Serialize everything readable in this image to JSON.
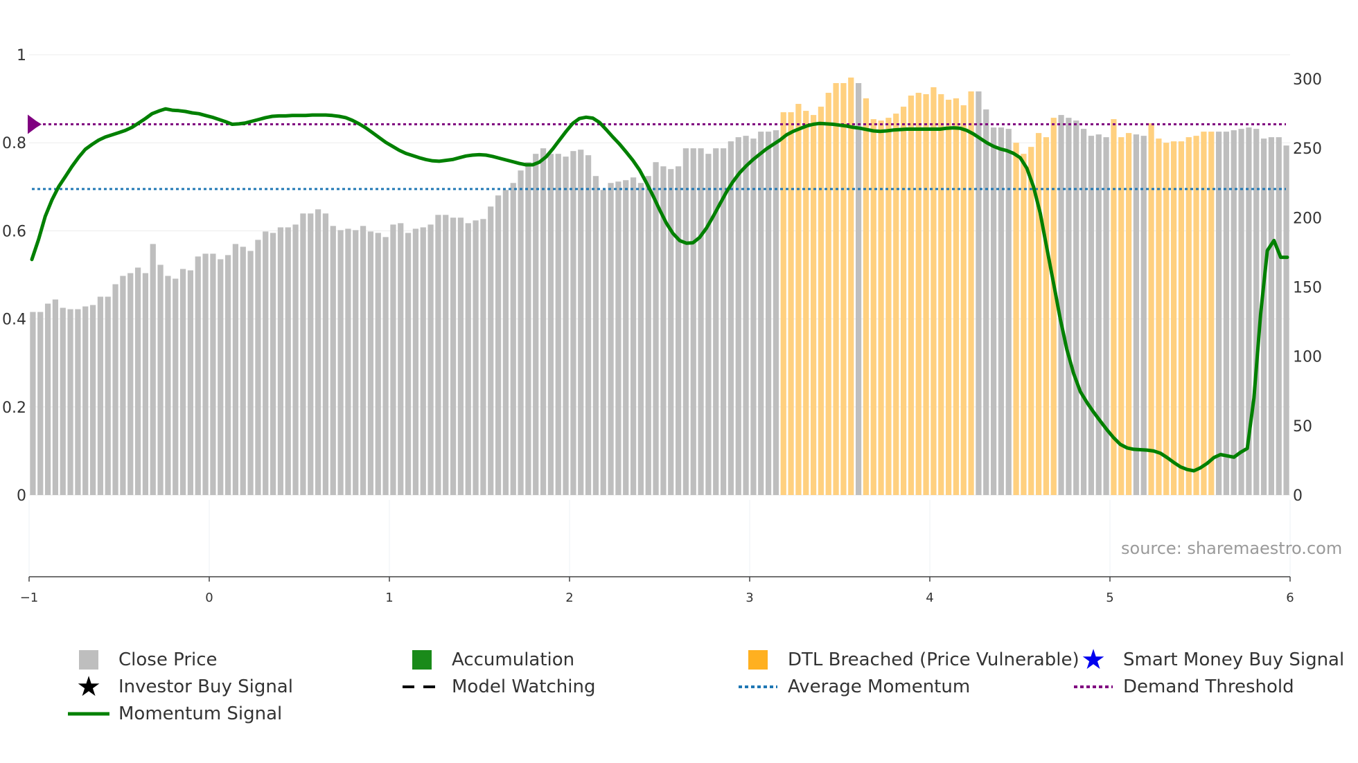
{
  "colors": {
    "price_bar": "#bebebe",
    "dtl_bar": "#ffd07f",
    "momentum": "#008000",
    "avg_momentum": "#1f77b4",
    "demand_threshold": "#800080",
    "threshold_marker": "#800080",
    "axis": "#444444",
    "grid": "#ececec"
  },
  "legend": {
    "close_price": "Close Price",
    "accumulation": "Accumulation",
    "dtl_breached": "DTL Breached (Price Vulnerable)",
    "smart_money": "Smart Money Buy Signal",
    "investor_buy": "Investor Buy Signal",
    "model_watching": "Model Watching",
    "average_momentum": "Average Momentum",
    "demand_threshold": "Demand Threshold",
    "momentum_signal": "Momentum Signal"
  },
  "source": "source: sharemaestro.com",
  "chart_data": {
    "type": "bar",
    "left_axis": {
      "range": [
        0,
        1
      ],
      "ticks": [
        "0",
        "0.2",
        "0.4",
        "0.6",
        "0.8",
        "1"
      ]
    },
    "right_axis": {
      "range": [
        0,
        300
      ],
      "ticks": [
        "0",
        "50",
        "100",
        "150",
        "200",
        "250",
        "300"
      ]
    },
    "x_axis": {
      "range": [
        -1,
        6
      ],
      "ticks": [
        "−1",
        "0",
        "1",
        "2",
        "3",
        "4",
        "5",
        "6"
      ]
    },
    "average_momentum": 0.695,
    "demand_threshold": 0.842,
    "close_price": [
      132,
      132,
      138,
      141,
      135,
      134,
      134,
      136,
      137,
      143,
      143,
      152,
      158,
      160,
      164,
      160,
      181,
      166,
      158,
      156,
      163,
      162,
      172,
      174,
      174,
      170,
      173,
      181,
      179,
      176,
      184,
      190,
      189,
      193,
      193,
      195,
      203,
      203,
      206,
      203,
      194,
      191,
      192,
      191,
      194,
      190,
      189,
      186,
      195,
      196,
      189,
      192,
      193,
      195,
      202,
      202,
      200,
      200,
      196,
      198,
      199,
      208,
      216,
      220,
      225,
      234,
      240,
      246,
      250,
      246,
      246,
      244,
      248,
      249,
      245,
      230,
      220,
      225,
      226,
      227,
      229,
      225,
      230,
      240,
      237,
      235,
      237,
      250,
      250,
      250,
      246,
      250,
      250,
      255,
      258,
      259,
      257,
      262,
      262,
      263,
      276,
      276,
      282,
      277,
      274,
      280,
      290,
      297,
      297,
      301,
      297,
      286,
      271,
      270,
      272,
      275,
      280,
      288,
      290,
      289,
      294,
      289,
      285,
      286,
      281,
      291,
      291,
      278,
      265,
      265,
      264,
      254,
      246,
      251,
      261,
      258,
      272,
      274,
      272,
      270,
      264,
      259,
      260,
      258,
      271,
      258,
      261,
      260,
      259,
      268,
      257,
      254,
      255,
      255,
      258,
      259,
      262,
      262,
      262,
      262,
      263,
      264,
      265,
      264,
      257,
      258,
      258,
      252
    ],
    "dtl_breached_ranges": [
      [
        100,
        109
      ],
      [
        111,
        125
      ],
      [
        131,
        136
      ],
      [
        144,
        146
      ],
      [
        149,
        157
      ]
    ],
    "momentum": [
      0.535,
      0.58,
      0.633,
      0.67,
      0.7,
      0.723,
      0.746,
      0.767,
      0.785,
      0.796,
      0.806,
      0.813,
      0.818,
      0.823,
      0.828,
      0.835,
      0.845,
      0.855,
      0.866,
      0.872,
      0.877,
      0.874,
      0.873,
      0.871,
      0.868,
      0.866,
      0.862,
      0.858,
      0.853,
      0.848,
      0.842,
      0.843,
      0.845,
      0.849,
      0.853,
      0.857,
      0.86,
      0.861,
      0.861,
      0.862,
      0.862,
      0.862,
      0.863,
      0.863,
      0.863,
      0.862,
      0.86,
      0.857,
      0.851,
      0.843,
      0.834,
      0.823,
      0.812,
      0.801,
      0.792,
      0.783,
      0.776,
      0.771,
      0.766,
      0.762,
      0.759,
      0.758,
      0.76,
      0.762,
      0.766,
      0.77,
      0.772,
      0.773,
      0.772,
      0.769,
      0.765,
      0.761,
      0.757,
      0.753,
      0.75,
      0.75,
      0.756,
      0.768,
      0.786,
      0.806,
      0.826,
      0.844,
      0.855,
      0.858,
      0.856,
      0.846,
      0.83,
      0.813,
      0.797,
      0.779,
      0.76,
      0.738,
      0.71,
      0.68,
      0.648,
      0.618,
      0.594,
      0.578,
      0.572,
      0.573,
      0.585,
      0.606,
      0.632,
      0.66,
      0.688,
      0.712,
      0.732,
      0.748,
      0.762,
      0.774,
      0.786,
      0.796,
      0.806,
      0.818,
      0.826,
      0.832,
      0.838,
      0.842,
      0.844,
      0.843,
      0.842,
      0.84,
      0.838,
      0.835,
      0.833,
      0.83,
      0.827,
      0.826,
      0.827,
      0.829,
      0.83,
      0.831,
      0.831,
      0.831,
      0.831,
      0.831,
      0.831,
      0.833,
      0.834,
      0.833,
      0.828,
      0.82,
      0.81,
      0.8,
      0.792,
      0.786,
      0.782,
      0.776,
      0.766,
      0.742,
      0.7,
      0.64,
      0.56,
      0.48,
      0.4,
      0.33,
      0.276,
      0.235,
      0.21,
      0.188,
      0.168,
      0.148,
      0.13,
      0.115,
      0.107,
      0.104,
      0.103,
      0.102,
      0.1,
      0.095,
      0.085,
      0.074,
      0.064,
      0.058,
      0.055,
      0.062,
      0.072,
      0.085,
      0.092,
      0.089,
      0.086,
      0.097,
      0.106,
      0.22,
      0.41,
      0.555,
      0.578,
      0.54,
      0.54
    ]
  }
}
